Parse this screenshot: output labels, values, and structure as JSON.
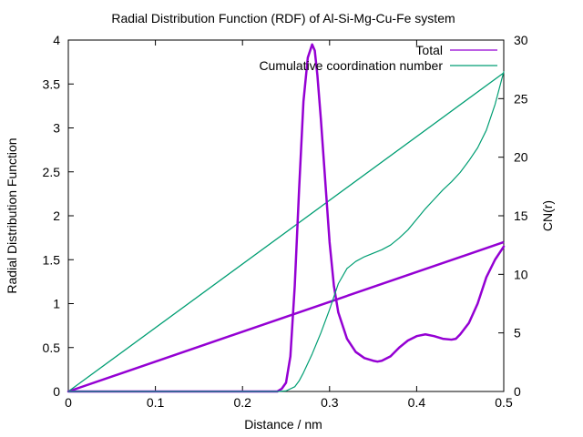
{
  "chart_data": {
    "type": "line",
    "title": "Radial Distribution Function (RDF) of Al-Si-Mg-Cu-Fe system",
    "xlabel": "Distance / nm",
    "ylabel": "Radial Distribution Function",
    "y2label": "CN(r)",
    "xlim": [
      0,
      0.5
    ],
    "ylim": [
      0,
      4
    ],
    "y2lim": [
      0,
      30
    ],
    "x_ticks": [
      "0",
      "0.1",
      "0.2",
      "0.3",
      "0.4",
      "0.5"
    ],
    "y_ticks": [
      "0",
      "0.5",
      "1",
      "1.5",
      "2",
      "2.5",
      "3",
      "3.5",
      "4"
    ],
    "y2_ticks": [
      "0",
      "5",
      "10",
      "15",
      "20",
      "25",
      "30"
    ],
    "grid": false,
    "legend_position": "top-right",
    "colors": {
      "total": "#9400d3",
      "cumulative": "#009e73"
    },
    "series": [
      {
        "name": "Total",
        "axis": "y",
        "color": "#9400d3",
        "x": [
          0.24,
          0.245,
          0.25,
          0.255,
          0.26,
          0.265,
          0.27,
          0.275,
          0.28,
          0.283,
          0.286,
          0.29,
          0.295,
          0.3,
          0.305,
          0.31,
          0.32,
          0.33,
          0.34,
          0.35,
          0.355,
          0.36,
          0.37,
          0.38,
          0.39,
          0.4,
          0.41,
          0.42,
          0.43,
          0.44,
          0.445,
          0.45,
          0.46,
          0.47,
          0.48,
          0.49,
          0.5
        ],
        "y": [
          0.0,
          0.03,
          0.1,
          0.4,
          1.2,
          2.3,
          3.3,
          3.8,
          3.95,
          3.88,
          3.6,
          3.1,
          2.4,
          1.7,
          1.2,
          0.9,
          0.6,
          0.45,
          0.38,
          0.35,
          0.34,
          0.35,
          0.4,
          0.5,
          0.58,
          0.63,
          0.65,
          0.63,
          0.6,
          0.59,
          0.6,
          0.65,
          0.78,
          1.0,
          1.3,
          1.5,
          1.65
        ]
      },
      {
        "name": "Cumulative coordination number",
        "axis": "y2",
        "color": "#009e73",
        "x": [
          0.24,
          0.25,
          0.26,
          0.265,
          0.27,
          0.275,
          0.28,
          0.29,
          0.3,
          0.31,
          0.32,
          0.33,
          0.34,
          0.35,
          0.36,
          0.37,
          0.38,
          0.39,
          0.4,
          0.41,
          0.42,
          0.43,
          0.44,
          0.45,
          0.46,
          0.47,
          0.48,
          0.49,
          0.5
        ],
        "y": [
          0.0,
          0.05,
          0.4,
          0.9,
          1.6,
          2.4,
          3.2,
          5.0,
          7.0,
          9.2,
          10.5,
          11.1,
          11.5,
          11.8,
          12.1,
          12.5,
          13.1,
          13.8,
          14.7,
          15.6,
          16.4,
          17.2,
          17.9,
          18.7,
          19.7,
          20.8,
          22.3,
          24.5,
          27.3
        ]
      }
    ],
    "reference_lines": [
      {
        "axis": "y",
        "color": "#9400d3",
        "x": [
          0,
          0.5
        ],
        "y": [
          0,
          1.7
        ]
      },
      {
        "axis": "y2",
        "color": "#009e73",
        "x": [
          0,
          0.5
        ],
        "y": [
          0,
          27.2
        ]
      }
    ]
  }
}
